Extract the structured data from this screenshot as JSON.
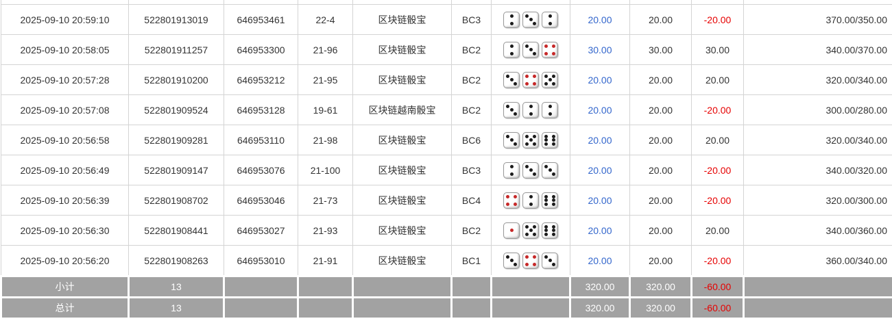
{
  "colors": {
    "link_blue": "#3366cc",
    "loss_red": "#e60000",
    "summary_bg": "#a2a2a2",
    "border": "#d4d4d4"
  },
  "table": {
    "rows": [
      {
        "time": "2025-09-10 20:59:10",
        "order_no": "522801913019",
        "round_no": "646953461",
        "period": "22-4",
        "game": "区块链骰宝",
        "play_code": "BC3",
        "dice": [
          2,
          3,
          2
        ],
        "bet": "20.00",
        "valid_bet": "20.00",
        "win_loss": "-20.00",
        "balance": "370.00/350.00"
      },
      {
        "time": "2025-09-10 20:58:05",
        "order_no": "522801911257",
        "round_no": "646953300",
        "period": "21-96",
        "game": "区块链骰宝",
        "play_code": "BC2",
        "dice": [
          2,
          3,
          4
        ],
        "bet": "30.00",
        "valid_bet": "30.00",
        "win_loss": "30.00",
        "balance": "340.00/370.00"
      },
      {
        "time": "2025-09-10 20:57:28",
        "order_no": "522801910200",
        "round_no": "646953212",
        "period": "21-95",
        "game": "区块链骰宝",
        "play_code": "BC2",
        "dice": [
          3,
          4,
          5
        ],
        "bet": "20.00",
        "valid_bet": "20.00",
        "win_loss": "20.00",
        "balance": "320.00/340.00"
      },
      {
        "time": "2025-09-10 20:57:08",
        "order_no": "522801909524",
        "round_no": "646953128",
        "period": "19-61",
        "game": "区块链越南骰宝",
        "play_code": "BC2",
        "dice": [
          3,
          2,
          2
        ],
        "bet": "20.00",
        "valid_bet": "20.00",
        "win_loss": "-20.00",
        "balance": "300.00/280.00"
      },
      {
        "time": "2025-09-10 20:56:58",
        "order_no": "522801909281",
        "round_no": "646953110",
        "period": "21-98",
        "game": "区块链骰宝",
        "play_code": "BC6",
        "dice": [
          3,
          5,
          6
        ],
        "bet": "20.00",
        "valid_bet": "20.00",
        "win_loss": "20.00",
        "balance": "320.00/340.00"
      },
      {
        "time": "2025-09-10 20:56:49",
        "order_no": "522801909147",
        "round_no": "646953076",
        "period": "21-100",
        "game": "区块链骰宝",
        "play_code": "BC3",
        "dice": [
          2,
          3,
          3
        ],
        "bet": "20.00",
        "valid_bet": "20.00",
        "win_loss": "-20.00",
        "balance": "340.00/320.00"
      },
      {
        "time": "2025-09-10 20:56:39",
        "order_no": "522801908702",
        "round_no": "646953046",
        "period": "21-73",
        "game": "区块链骰宝",
        "play_code": "BC4",
        "dice": [
          4,
          2,
          6
        ],
        "bet": "20.00",
        "valid_bet": "20.00",
        "win_loss": "-20.00",
        "balance": "320.00/300.00"
      },
      {
        "time": "2025-09-10 20:56:30",
        "order_no": "522801908441",
        "round_no": "646953027",
        "period": "21-93",
        "game": "区块链骰宝",
        "play_code": "BC2",
        "dice": [
          1,
          5,
          6
        ],
        "bet": "20.00",
        "valid_bet": "20.00",
        "win_loss": "20.00",
        "balance": "340.00/360.00"
      },
      {
        "time": "2025-09-10 20:56:20",
        "order_no": "522801908263",
        "round_no": "646953010",
        "period": "21-91",
        "game": "区块链骰宝",
        "play_code": "BC1",
        "dice": [
          3,
          4,
          3
        ],
        "bet": "20.00",
        "valid_bet": "20.00",
        "win_loss": "-20.00",
        "balance": "360.00/340.00"
      }
    ],
    "summary": [
      {
        "label": "小计",
        "count": "13",
        "bet": "320.00",
        "valid_bet": "320.00",
        "win_loss": "-60.00"
      },
      {
        "label": "总计",
        "count": "13",
        "bet": "320.00",
        "valid_bet": "320.00",
        "win_loss": "-60.00"
      }
    ]
  }
}
